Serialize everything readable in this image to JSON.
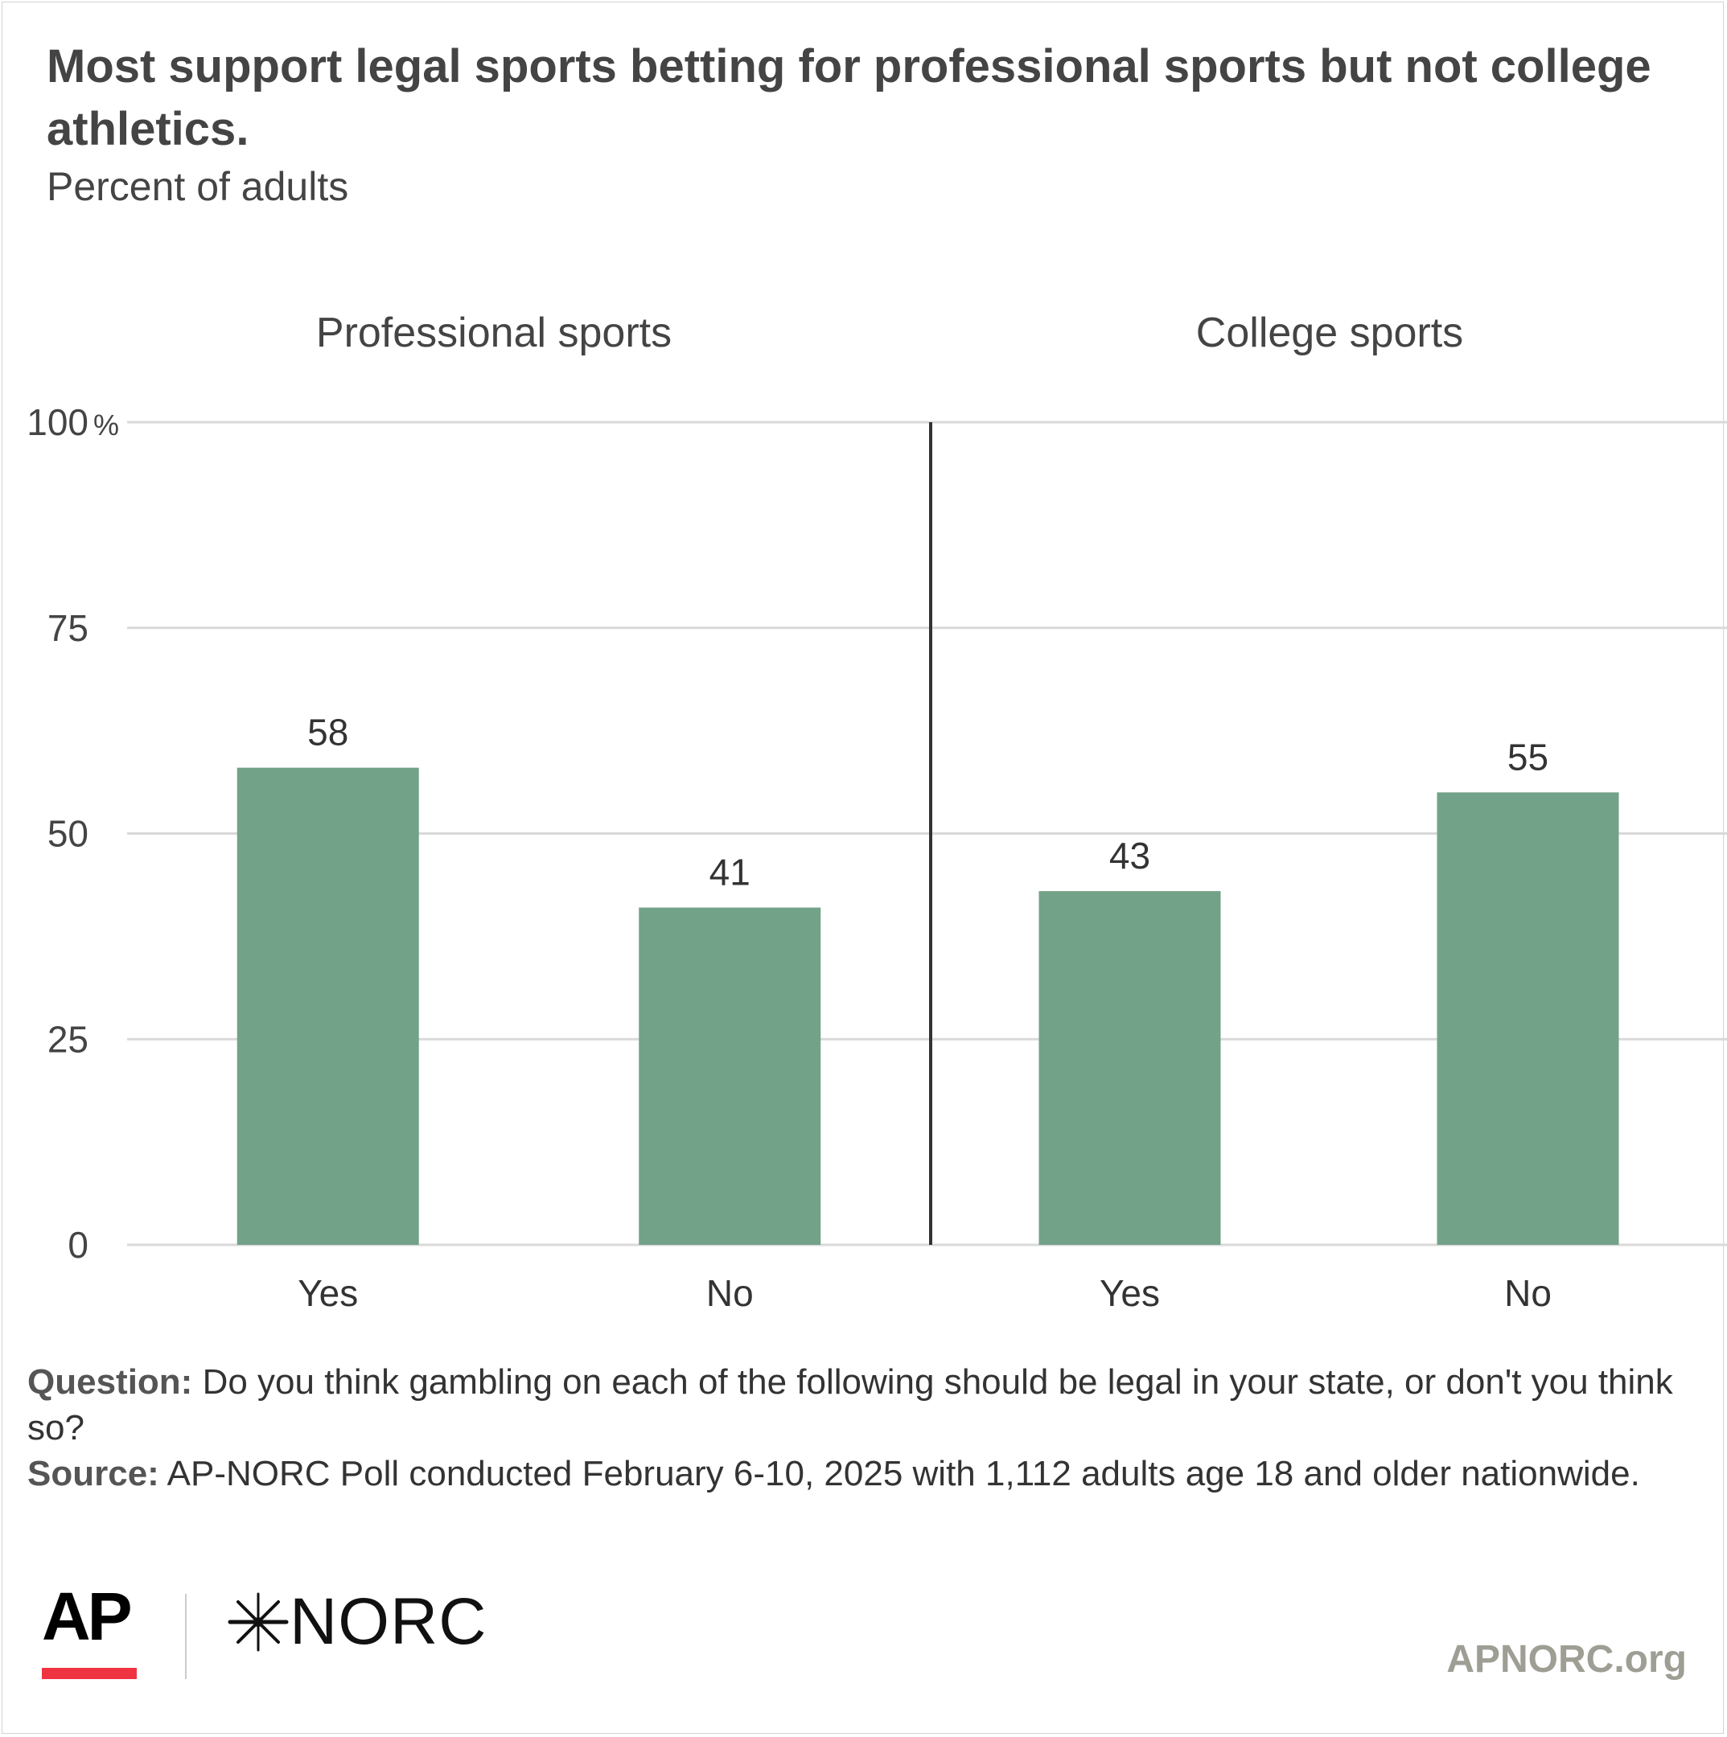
{
  "title": "Most support legal sports betting for professional sports but not college athletics.",
  "subtitle": "Percent of adults",
  "chart_data": {
    "type": "bar",
    "ylim": [
      0,
      100
    ],
    "yticks": [
      0,
      25,
      50,
      75,
      100
    ],
    "ytick_labels": [
      "0",
      "25",
      "50",
      "75",
      "100"
    ],
    "y_unit": "%",
    "grid": true,
    "bar_color": "#72a288",
    "panels": [
      {
        "label": "Professional sports",
        "categories": [
          "Yes",
          "No"
        ],
        "values": [
          58,
          41
        ]
      },
      {
        "label": "College sports",
        "categories": [
          "Yes",
          "No"
        ],
        "values": [
          43,
          55
        ]
      }
    ]
  },
  "notes": {
    "question_label": "Question:",
    "question_text": "Do you think gambling on each of the following should be legal in your state, or don't you think so?",
    "source_label": "Source:",
    "source_text": "AP-NORC Poll conducted February 6-10, 2025 with 1,112 adults age 18 and older nationwide."
  },
  "logos": {
    "ap": "AP",
    "norc": "NORC",
    "site": "APNORC.org"
  }
}
